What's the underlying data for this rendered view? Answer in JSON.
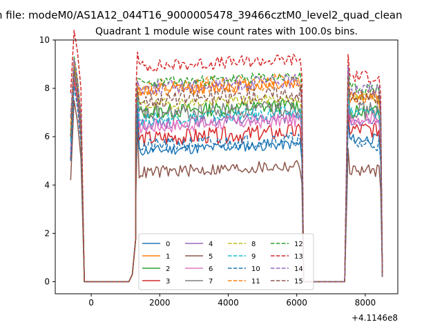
{
  "figure": {
    "suptitle": "n file: modeM0/AS1A12_044T16_9000005478_39466cztM0_level2_quad_clean",
    "title": "Quadrant 1 module wise count rates with 100.0s bins.",
    "x_offset_label": "+4.1146e8"
  },
  "chart_data": {
    "type": "line",
    "title": "Quadrant 1 module wise count rates with 100.0s bins.",
    "xlabel": "",
    "ylabel": "",
    "x_offset": 411460000,
    "xlim": [
      -1050,
      8950
    ],
    "ylim": [
      -0.5,
      10
    ],
    "xticks": [
      0,
      2000,
      4000,
      6000,
      8000
    ],
    "yticks": [
      0,
      2,
      4,
      6,
      8,
      10
    ],
    "legend": {
      "placement": "lower center",
      "ncol": 4
    },
    "grid": false,
    "segments_x": [
      [
        -600,
        -500,
        -400,
        -300,
        -200,
        -100
      ],
      [
        0,
        100,
        200,
        300,
        400,
        500,
        600,
        700,
        800,
        900,
        1000,
        1100
      ],
      [
        1200,
        1300
      ],
      [
        1300,
        1350,
        1400,
        1450,
        1500,
        1550,
        1600,
        1650,
        1700,
        1750,
        1800,
        1850,
        1900,
        1950,
        2000,
        2050,
        2100,
        2150,
        2200,
        2250,
        2300,
        2350,
        2400,
        2450,
        2500,
        2550,
        2600,
        2650,
        2700,
        2750,
        2800,
        2850,
        2900,
        2950,
        3000,
        3050,
        3100,
        3150,
        3200,
        3250,
        3300,
        3350,
        3400,
        3450,
        3500,
        3550,
        3600,
        3650,
        3700,
        3750,
        3800,
        3850,
        3900,
        3950,
        4000,
        4050,
        4100,
        4150,
        4200,
        4250,
        4300,
        4350,
        4400,
        4450,
        4500,
        4550,
        4600,
        4650,
        4700,
        4750,
        4800,
        4850,
        4900,
        4950,
        5000,
        5050,
        5100,
        5150,
        5200,
        5250,
        5300,
        5350,
        5400,
        5450,
        5500,
        5550,
        5600,
        5650,
        5700,
        5750,
        5800,
        5850,
        5900,
        5950,
        6000,
        6050,
        6100,
        6150
      ],
      [
        6200,
        6300,
        6400,
        6500,
        6600,
        6700,
        6800,
        6900,
        7000,
        7100,
        7200,
        7300,
        7400
      ],
      [
        7500,
        7550,
        7600,
        7650,
        7700,
        7750,
        7800,
        7850,
        7900,
        7950,
        8000,
        8050,
        8100,
        8150,
        8200,
        8250,
        8300,
        8350,
        8400,
        8450,
        8500
      ]
    ],
    "series": [
      {
        "name": "0",
        "color": "#1f77b4",
        "dash": "solid",
        "low": 5.0,
        "peak": 7.8,
        "plateau": 5.4,
        "tail": 5.9
      },
      {
        "name": "1",
        "color": "#ff7f0e",
        "dash": "solid",
        "low": 6.0,
        "peak": 8.0,
        "plateau": 7.9,
        "tail": 7.6
      },
      {
        "name": "2",
        "color": "#2ca02c",
        "dash": "solid",
        "low": 6.0,
        "peak": 8.0,
        "plateau": 7.0,
        "tail": 7.0
      },
      {
        "name": "3",
        "color": "#d62728",
        "dash": "solid",
        "low": 5.0,
        "peak": 7.5,
        "plateau": 5.9,
        "tail": 6.3
      },
      {
        "name": "4",
        "color": "#9467bd",
        "dash": "solid",
        "low": 5.3,
        "peak": 7.9,
        "plateau": 6.5,
        "tail": 6.6
      },
      {
        "name": "5",
        "color": "#8c564b",
        "dash": "solid",
        "low": 4.2,
        "peak": 6.6,
        "plateau": 4.5,
        "tail": 4.6
      },
      {
        "name": "6",
        "color": "#e377c2",
        "dash": "solid",
        "low": 5.4,
        "peak": 7.7,
        "plateau": 6.4,
        "tail": 6.8
      },
      {
        "name": "7",
        "color": "#7f7f7f",
        "dash": "solid",
        "low": 5.8,
        "peak": 7.8,
        "plateau": 6.9,
        "tail": 7.1
      },
      {
        "name": "8",
        "color": "#bcbd22",
        "dash": "dashed",
        "low": 6.2,
        "peak": 8.1,
        "plateau": 7.3,
        "tail": 7.6
      },
      {
        "name": "9",
        "color": "#17becf",
        "dash": "dashed",
        "low": 5.8,
        "peak": 7.9,
        "plateau": 6.7,
        "tail": 7.0
      },
      {
        "name": "10",
        "color": "#1f77b4",
        "dash": "dashed",
        "low": 5.0,
        "peak": 7.2,
        "plateau": 5.6,
        "tail": 5.7
      },
      {
        "name": "11",
        "color": "#ff7f0e",
        "dash": "dashed",
        "low": 6.5,
        "peak": 8.3,
        "plateau": 8.0,
        "tail": 7.7
      },
      {
        "name": "12",
        "color": "#2ca02c",
        "dash": "dashed",
        "low": 6.8,
        "peak": 8.4,
        "plateau": 8.2,
        "tail": 8.0
      },
      {
        "name": "13",
        "color": "#d62728",
        "dash": "dashed",
        "low": 7.8,
        "peak": 9.5,
        "plateau": 8.9,
        "tail": 8.5
      },
      {
        "name": "14",
        "color": "#9467bd",
        "dash": "dashed",
        "low": 6.8,
        "peak": 8.3,
        "plateau": 8.0,
        "tail": 8.0
      },
      {
        "name": "15",
        "color": "#8c564b",
        "dash": "dashed",
        "low": 6.0,
        "peak": 7.9,
        "plateau": 7.5,
        "tail": 7.6
      }
    ]
  }
}
